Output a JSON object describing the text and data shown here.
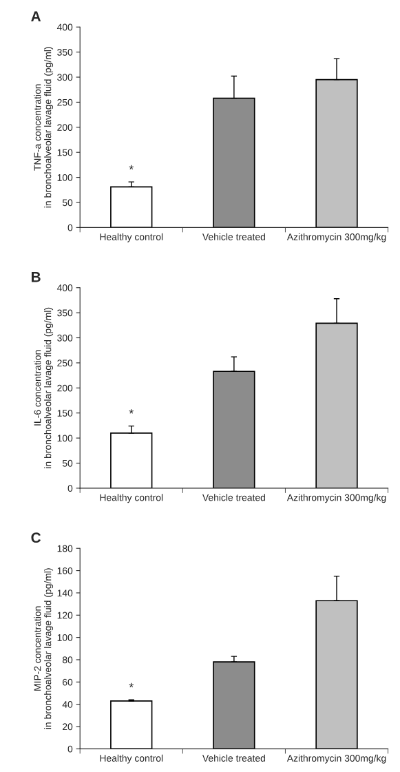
{
  "chart_data": [
    {
      "type": "bar",
      "title": "A",
      "ylabel": "TNF-a concentration\nin bronchoalveolar lavage fluid (pg/ml)",
      "categories": [
        "Healthy control",
        "Vehicle treated",
        "Azithromycin 300mg/kg"
      ],
      "values": [
        81,
        258,
        295
      ],
      "errors": [
        [
          81,
          91
        ],
        [
          258,
          302
        ],
        [
          295,
          337
        ]
      ],
      "colors": [
        "#ffffff",
        "#8c8c8c",
        "#c0c0c0"
      ],
      "ylim": [
        0,
        400
      ],
      "yticks": [
        0,
        50,
        100,
        150,
        200,
        250,
        300,
        350,
        400
      ],
      "annotations": [
        "*"
      ]
    },
    {
      "type": "bar",
      "title": "B",
      "ylabel": "IL-6 concentration\nin bronchoalveolar lavage fluid (pg/ml)",
      "categories": [
        "Healthy control",
        "Vehicle treated",
        "Azithromycin 300mg/kg"
      ],
      "values": [
        110,
        233,
        329
      ],
      "errors": [
        [
          110,
          124
        ],
        [
          233,
          262
        ],
        [
          329,
          378
        ]
      ],
      "colors": [
        "#ffffff",
        "#8c8c8c",
        "#c0c0c0"
      ],
      "ylim": [
        0,
        400
      ],
      "yticks": [
        0,
        50,
        100,
        150,
        200,
        250,
        300,
        350,
        400
      ],
      "annotations": [
        "*"
      ]
    },
    {
      "type": "bar",
      "title": "C",
      "ylabel": "MIP-2 concentration\nin bronchoalveolar lavage fluid (pg/ml)",
      "categories": [
        "Healthy control",
        "Vehicle treated",
        "Azithromycin 300mg/kg"
      ],
      "values": [
        43,
        78,
        133
      ],
      "errors": [
        [
          43,
          44
        ],
        [
          78,
          83
        ],
        [
          133,
          155
        ]
      ],
      "colors": [
        "#ffffff",
        "#8c8c8c",
        "#c0c0c0"
      ],
      "ylim": [
        0,
        180
      ],
      "yticks": [
        0,
        20,
        40,
        60,
        80,
        100,
        120,
        140,
        160,
        180
      ],
      "annotations": [
        "*"
      ]
    }
  ]
}
